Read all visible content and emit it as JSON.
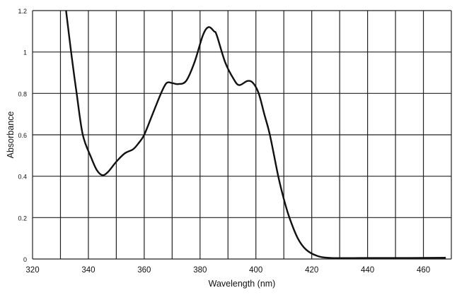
{
  "chart_data": {
    "type": "line",
    "title": "",
    "xlabel": "Wavelength (nm)",
    "ylabel": "Absorbance",
    "xlim": [
      320,
      470
    ],
    "ylim": [
      0,
      1.2
    ],
    "xticks": [
      320,
      340,
      360,
      380,
      400,
      420,
      440,
      460
    ],
    "yticks": [
      0,
      0.2,
      0.4,
      0.6,
      0.8,
      1,
      1.2
    ],
    "ytick_labels": [
      "0",
      "0.2",
      "0.4",
      "0.6",
      "0.8",
      "1",
      "1.2"
    ],
    "grid": true,
    "grid_x_step": 10,
    "grid_y_step": 0.2,
    "series": [
      {
        "name": "Absorbance",
        "color": "#111111",
        "x": [
          332,
          334,
          335.8,
          338,
          341,
          343,
          345,
          347,
          350,
          353,
          356,
          358,
          360,
          363,
          366,
          368,
          370,
          372,
          375,
          378,
          381,
          383,
          385,
          386,
          389,
          392,
          394,
          397,
          399,
          401,
          403,
          405,
          408,
          410,
          412,
          415,
          418,
          422,
          427,
          440,
          455,
          468
        ],
        "y": [
          1.2,
          0.98,
          0.8,
          0.6,
          0.49,
          0.43,
          0.405,
          0.42,
          0.47,
          0.51,
          0.53,
          0.56,
          0.6,
          0.7,
          0.8,
          0.85,
          0.85,
          0.845,
          0.86,
          0.95,
          1.08,
          1.12,
          1.1,
          1.08,
          0.95,
          0.87,
          0.84,
          0.86,
          0.85,
          0.8,
          0.7,
          0.6,
          0.4,
          0.29,
          0.2,
          0.1,
          0.045,
          0.015,
          0.005,
          0.005,
          0.005,
          0.006
        ]
      }
    ]
  }
}
